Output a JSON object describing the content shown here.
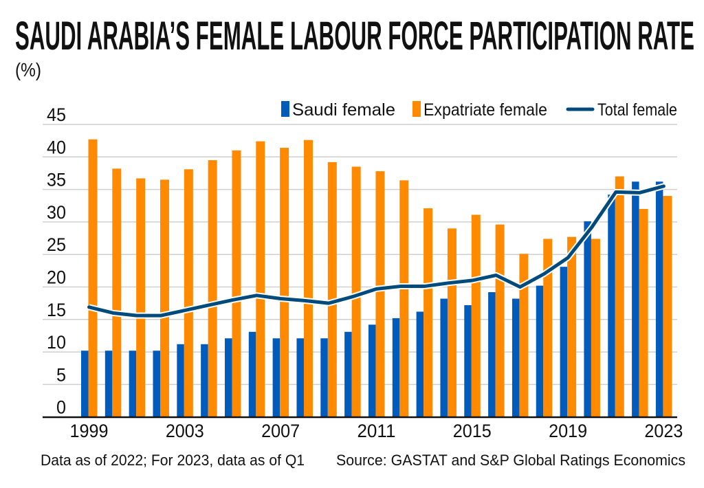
{
  "chart_data": {
    "type": "bar",
    "title": "SAUDI ARABIA’S FEMALE LABOUR FORCE PARTICIPATION RATE",
    "subtitle": "(%)",
    "xlabel": "",
    "ylabel": "",
    "ylim": [
      0,
      45
    ],
    "yticks": [
      0,
      5,
      10,
      15,
      20,
      25,
      30,
      35,
      40,
      45
    ],
    "xtick_labels": [
      "1999",
      "2003",
      "2007",
      "2011",
      "2015",
      "2019",
      "2023"
    ],
    "grid": true,
    "legend_placement": "top-right",
    "categories": [
      "1999",
      "2000",
      "2001",
      "2002",
      "2003",
      "2004",
      "2005",
      "2006",
      "2007",
      "2008",
      "2009",
      "2010",
      "2011",
      "2012",
      "2013",
      "2014",
      "2015",
      "2016",
      "2017",
      "2018",
      "2019",
      "2020",
      "2021",
      "2022",
      "2023"
    ],
    "series": [
      {
        "name": "Saudi female",
        "type": "bar",
        "color": "#005bbb",
        "values": [
          10.2,
          10.2,
          10.2,
          10.2,
          11.2,
          11.2,
          12.1,
          13.1,
          12.1,
          12.1,
          12.1,
          13.1,
          14.2,
          15.2,
          16.2,
          18.2,
          17.2,
          19.2,
          18.2,
          20.2,
          23.1,
          30.1,
          34.2,
          36.2,
          36.2
        ]
      },
      {
        "name": "Expatriate female",
        "type": "bar",
        "color": "#ff8a00",
        "values": [
          42.7,
          38.2,
          36.7,
          36.5,
          38.1,
          39.5,
          41.0,
          42.4,
          41.4,
          42.6,
          39.2,
          38.5,
          37.8,
          36.4,
          32.1,
          29.0,
          31.1,
          29.6,
          25.1,
          27.4,
          27.7,
          27.4,
          37.0,
          32.0,
          34.0
        ]
      },
      {
        "name": "Total female",
        "type": "line",
        "color": "#004b7c",
        "values": [
          16.9,
          16.0,
          15.6,
          15.6,
          16.4,
          17.2,
          18.0,
          18.7,
          18.2,
          17.9,
          17.5,
          18.5,
          19.7,
          20.1,
          20.1,
          20.6,
          21.0,
          21.8,
          20.0,
          22.0,
          24.5,
          29.2,
          34.6,
          34.5,
          35.5
        ]
      }
    ],
    "footnote": "Data as of 2022; For 2023, data as of Q1",
    "source": "Source: GASTAT and S&P Global Ratings Economics"
  }
}
